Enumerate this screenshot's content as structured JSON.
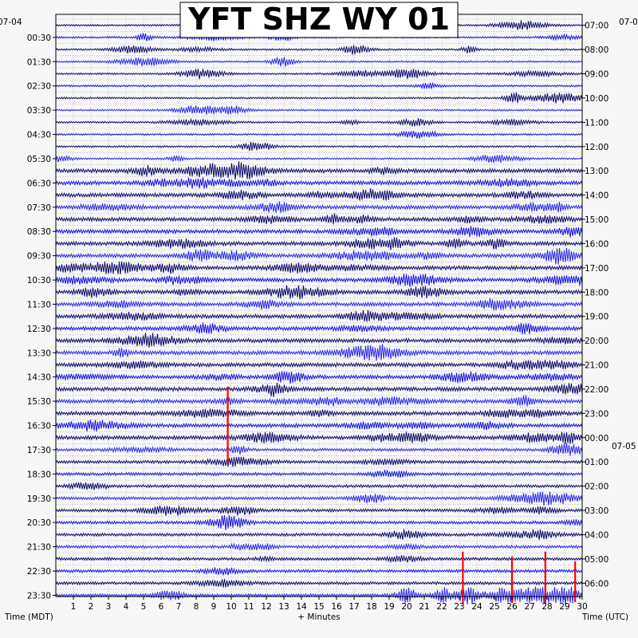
{
  "chart_data": {
    "type": "line",
    "title": "YFT SHZ WY 01",
    "xlabel": "+ Minutes",
    "left_axis_label": "Time (MDT)",
    "right_axis_label": "Time (UTC)",
    "left_date": "07-04",
    "right_date_top": "07-0",
    "right_date_change": "07-05",
    "x_ticks": [
      "1",
      "2",
      "3",
      "4",
      "5",
      "6",
      "7",
      "8",
      "9",
      "10",
      "11",
      "12",
      "13",
      "14",
      "15",
      "16",
      "17",
      "18",
      "19",
      "20",
      "21",
      "22",
      "23",
      "24",
      "25",
      "26",
      "27",
      "28",
      "29",
      "30"
    ],
    "xlim": [
      0,
      30
    ],
    "left_ticks": [
      "00:30",
      "01:30",
      "02:30",
      "03:30",
      "04:30",
      "05:30",
      "06:30",
      "07:30",
      "08:30",
      "09:30",
      "10:30",
      "11:30",
      "12:30",
      "13:30",
      "14:30",
      "15:30",
      "16:30",
      "17:30",
      "18:30",
      "19:30",
      "20:30",
      "21:30",
      "22:30",
      "23:30"
    ],
    "right_ticks": [
      "07:00",
      "08:00",
      "09:00",
      "10:00",
      "11:00",
      "12:00",
      "13:00",
      "14:00",
      "15:00",
      "16:00",
      "17:00",
      "18:00",
      "19:00",
      "20:00",
      "21:00",
      "22:00",
      "23:00",
      "00:00",
      "01:00",
      "02:00",
      "03:00",
      "04:00",
      "05:00",
      "06:00"
    ],
    "trace_count": 48,
    "trace_colors": [
      "#0b0b6b",
      "#1515e0",
      "#0b0b6b",
      "#2a2ae8"
    ],
    "highlight_color": "#ff0000",
    "highlight_events": [
      {
        "trace": 35,
        "minute": 9.8,
        "height": 2.6
      },
      {
        "trace": 47,
        "minute": 23.2,
        "height": 1.8
      },
      {
        "trace": 47,
        "minute": 26.0,
        "height": 1.6
      },
      {
        "trace": 47,
        "minute": 27.9,
        "height": 1.8
      },
      {
        "trace": 47,
        "minute": 29.6,
        "height": 1.4
      }
    ],
    "grid": true
  }
}
